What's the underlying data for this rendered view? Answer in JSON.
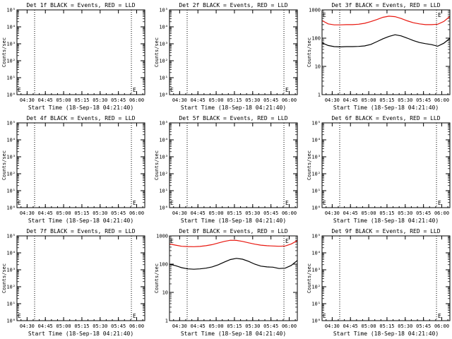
{
  "chart_data": [
    {
      "title": "Det 1f BLACK = Events, RED = LLD",
      "type": "line",
      "xlabel": "Start Time (18-Sep-18 04:21:40)",
      "ylabel": "Counts/sec",
      "ytick_labels": [
        "10⁰",
        "10¹",
        "10²",
        "10³",
        "10⁴",
        "10⁵"
      ],
      "xtick_labels": [
        "04:30",
        "04:45",
        "05:00",
        "05:15",
        "05:30",
        "05:45",
        "06:00"
      ],
      "ylim": [
        1,
        100000
      ],
      "xlim_minutes": [
        0,
        105
      ],
      "vlines_minutes": [
        14.5,
        94
      ],
      "marker": "E",
      "series": []
    },
    {
      "title": "Det 2f BLACK = Events, RED = LLD",
      "type": "line",
      "xlabel": "Start Time (18-Sep-18 04:21:40)",
      "ylabel": "Counts/sec",
      "ytick_labels": [
        "10⁰",
        "10¹",
        "10²",
        "10³",
        "10⁴",
        "10⁵"
      ],
      "xtick_labels": [
        "04:30",
        "04:45",
        "05:00",
        "05:15",
        "05:30",
        "05:45",
        "06:00"
      ],
      "ylim": [
        1,
        100000
      ],
      "xlim_minutes": [
        0,
        105
      ],
      "vlines_minutes": [
        14.5,
        94
      ],
      "marker": "E",
      "series": []
    },
    {
      "title": "Det 3f BLACK = Events, RED = LLD",
      "type": "line",
      "xlabel": "Start Time (18-Sep-18 04:21:40)",
      "ylabel": "Counts/sec",
      "ytick_labels": [
        "1",
        "10",
        "100",
        "1000"
      ],
      "xtick_labels": [
        "04:30",
        "04:45",
        "05:00",
        "05:15",
        "05:30",
        "05:45",
        "06:00"
      ],
      "ylim": [
        1,
        1000
      ],
      "xlim_minutes": [
        0,
        105
      ],
      "vlines_minutes": [
        14.5,
        94
      ],
      "marker": "E",
      "series": [
        {
          "color": "#000000",
          "x": [
            0,
            5,
            10,
            15,
            20,
            25,
            30,
            35,
            40,
            45,
            50,
            55,
            60,
            65,
            70,
            75,
            80,
            85,
            90,
            95,
            100,
            105
          ],
          "y": [
            68,
            55,
            50,
            49,
            50,
            50,
            51,
            53,
            60,
            75,
            95,
            115,
            132,
            120,
            100,
            82,
            70,
            64,
            59,
            52,
            66,
            98
          ]
        },
        {
          "color": "#e8170f",
          "x": [
            0,
            5,
            10,
            15,
            20,
            25,
            30,
            35,
            40,
            45,
            50,
            55,
            60,
            65,
            70,
            75,
            80,
            85,
            90,
            95,
            100,
            105
          ],
          "y": [
            420,
            320,
            295,
            295,
            300,
            300,
            310,
            335,
            385,
            455,
            545,
            600,
            575,
            495,
            410,
            350,
            320,
            300,
            300,
            310,
            390,
            590
          ]
        }
      ]
    },
    {
      "title": "Det 4f BLACK = Events, RED = LLD",
      "type": "line",
      "xlabel": "Start Time (18-Sep-18 04:21:40)",
      "ylabel": "Counts/sec",
      "ytick_labels": [
        "10⁰",
        "10¹",
        "10²",
        "10³",
        "10⁴",
        "10⁵"
      ],
      "xtick_labels": [
        "04:30",
        "04:45",
        "05:00",
        "05:15",
        "05:30",
        "05:45",
        "06:00"
      ],
      "ylim": [
        1,
        100000
      ],
      "xlim_minutes": [
        0,
        105
      ],
      "vlines_minutes": [
        14.5,
        94
      ],
      "marker": "E",
      "series": []
    },
    {
      "title": "Det 5f BLACK = Events, RED = LLD",
      "type": "line",
      "xlabel": "Start Time (18-Sep-18 04:21:40)",
      "ylabel": "Counts/sec",
      "ytick_labels": [
        "10⁰",
        "10¹",
        "10²",
        "10³",
        "10⁴",
        "10⁵"
      ],
      "xtick_labels": [
        "04:30",
        "04:45",
        "05:00",
        "05:15",
        "05:30",
        "05:45",
        "06:00"
      ],
      "ylim": [
        1,
        100000
      ],
      "xlim_minutes": [
        0,
        105
      ],
      "vlines_minutes": [
        14.5,
        94
      ],
      "marker": "E",
      "series": []
    },
    {
      "title": "Det 6f BLACK = Events, RED = LLD",
      "type": "line",
      "xlabel": "Start Time (18-Sep-18 04:21:40)",
      "ylabel": "Counts/sec",
      "ytick_labels": [
        "10⁰",
        "10¹",
        "10²",
        "10³",
        "10⁴",
        "10⁵"
      ],
      "xtick_labels": [
        "04:30",
        "04:45",
        "05:00",
        "05:15",
        "05:30",
        "05:45",
        "06:00"
      ],
      "ylim": [
        1,
        100000
      ],
      "xlim_minutes": [
        0,
        105
      ],
      "vlines_minutes": [
        14.5,
        94
      ],
      "marker": "E",
      "series": []
    },
    {
      "title": "Det 7f BLACK = Events, RED = LLD",
      "type": "line",
      "xlabel": "Start Time (18-Sep-18 04:21:40)",
      "ylabel": "Counts/sec",
      "ytick_labels": [
        "10⁰",
        "10¹",
        "10²",
        "10³",
        "10⁴",
        "10⁵"
      ],
      "xtick_labels": [
        "04:30",
        "04:45",
        "05:00",
        "05:15",
        "05:30",
        "05:45",
        "06:00"
      ],
      "ylim": [
        1,
        100000
      ],
      "xlim_minutes": [
        0,
        105
      ],
      "vlines_minutes": [
        14.5,
        94
      ],
      "marker": "E",
      "series": []
    },
    {
      "title": "Det 8f BLACK = Events, RED = LLD",
      "type": "line",
      "xlabel": "Start Time (18-Sep-18 04:21:40)",
      "ylabel": "Counts/sec",
      "ytick_labels": [
        "1",
        "10",
        "100",
        "1000"
      ],
      "xtick_labels": [
        "04:30",
        "04:45",
        "05:00",
        "05:15",
        "05:30",
        "05:45",
        "06:00"
      ],
      "ylim": [
        1,
        1000
      ],
      "xlim_minutes": [
        0,
        105
      ],
      "vlines_minutes": [
        14.5,
        94
      ],
      "marker": "E",
      "series": [
        {
          "color": "#000000",
          "x": [
            0,
            5,
            10,
            15,
            20,
            25,
            30,
            35,
            40,
            45,
            50,
            55,
            60,
            65,
            70,
            75,
            80,
            85,
            90,
            95,
            100,
            105
          ],
          "y": [
            100,
            88,
            75,
            68,
            66,
            68,
            72,
            80,
            95,
            118,
            145,
            160,
            150,
            125,
            100,
            85,
            80,
            78,
            70,
            72,
            90,
            135
          ]
        },
        {
          "color": "#e8170f",
          "x": [
            0,
            5,
            10,
            15,
            20,
            25,
            30,
            35,
            40,
            45,
            50,
            55,
            60,
            65,
            70,
            75,
            80,
            85,
            90,
            95,
            100,
            105
          ],
          "y": [
            520,
            470,
            430,
            420,
            415,
            425,
            450,
            490,
            560,
            640,
            700,
            690,
            640,
            570,
            510,
            470,
            450,
            440,
            430,
            440,
            520,
            680
          ]
        }
      ]
    },
    {
      "title": "Det 9f BLACK = Events, RED = LLD",
      "type": "line",
      "xlabel": "Start Time (18-Sep-18 04:21:40)",
      "ylabel": "Counts/sec",
      "ytick_labels": [
        "10⁰",
        "10¹",
        "10²",
        "10³",
        "10⁴",
        "10⁵"
      ],
      "xtick_labels": [
        "04:30",
        "04:45",
        "05:00",
        "05:15",
        "05:30",
        "05:45",
        "06:00"
      ],
      "ylim": [
        1,
        100000
      ],
      "xlim_minutes": [
        0,
        105
      ],
      "vlines_minutes": [
        14.5,
        94
      ],
      "marker": "E",
      "series": []
    }
  ]
}
